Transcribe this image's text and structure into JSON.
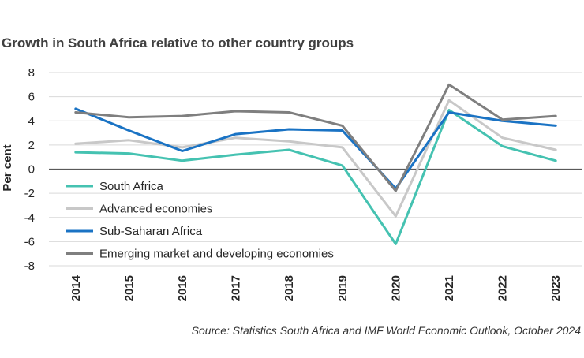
{
  "chart_data": {
    "type": "line",
    "title": "Growth in South Africa relative to other country groups",
    "ylabel": "Per cent",
    "xlabel": "",
    "categories": [
      "2014",
      "2015",
      "2016",
      "2017",
      "2018",
      "2019",
      "2020",
      "2021",
      "2022",
      "2023"
    ],
    "ylim": [
      -8,
      8
    ],
    "yticks": [
      -8,
      -6,
      -4,
      -2,
      0,
      2,
      4,
      6,
      8
    ],
    "grid": true,
    "legend_position": "lower-left",
    "series": [
      {
        "name": "South Africa",
        "color": "#45c2b1",
        "values": [
          1.4,
          1.3,
          0.7,
          1.2,
          1.6,
          0.3,
          -6.2,
          4.9,
          1.9,
          0.7
        ]
      },
      {
        "name": "Advanced economies",
        "color": "#c8c8c8",
        "values": [
          2.1,
          2.4,
          1.8,
          2.6,
          2.3,
          1.8,
          -3.9,
          5.7,
          2.6,
          1.6
        ]
      },
      {
        "name": "Sub-Saharan Africa",
        "color": "#1a73c4",
        "values": [
          5.0,
          3.2,
          1.5,
          2.9,
          3.3,
          3.2,
          -1.6,
          4.7,
          4.0,
          3.6
        ]
      },
      {
        "name": "Emerging market and developing economies",
        "color": "#7f7f7f",
        "values": [
          4.7,
          4.3,
          4.4,
          4.8,
          4.7,
          3.6,
          -1.8,
          7.0,
          4.1,
          4.4
        ]
      }
    ],
    "source": "Source: Statistics South Africa and IMF World Economic Outlook, October 2024"
  }
}
